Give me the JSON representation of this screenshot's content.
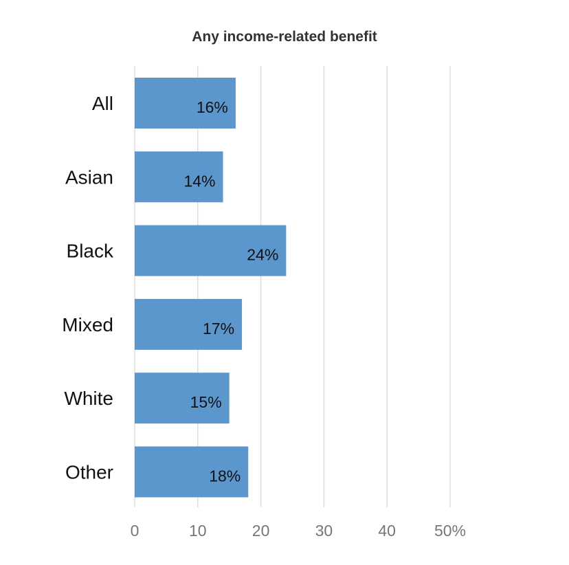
{
  "chart_data": {
    "type": "bar",
    "orientation": "horizontal",
    "title": "Any income-related benefit",
    "xlabel": "",
    "ylabel": "",
    "categories": [
      "All",
      "Asian",
      "Black",
      "Mixed",
      "White",
      "Other"
    ],
    "values": [
      16,
      14,
      24,
      17,
      15,
      18
    ],
    "data_labels": [
      "16%",
      "14%",
      "24%",
      "17%",
      "15%",
      "18%"
    ],
    "xlim": [
      0,
      50
    ],
    "x_ticks": [
      0,
      10,
      20,
      30,
      40,
      50
    ],
    "x_tick_labels": [
      "0",
      "10",
      "20",
      "30",
      "40",
      "50%"
    ],
    "grid": true,
    "bar_color": "#5b96cc",
    "grid_color": "#dddddd"
  }
}
